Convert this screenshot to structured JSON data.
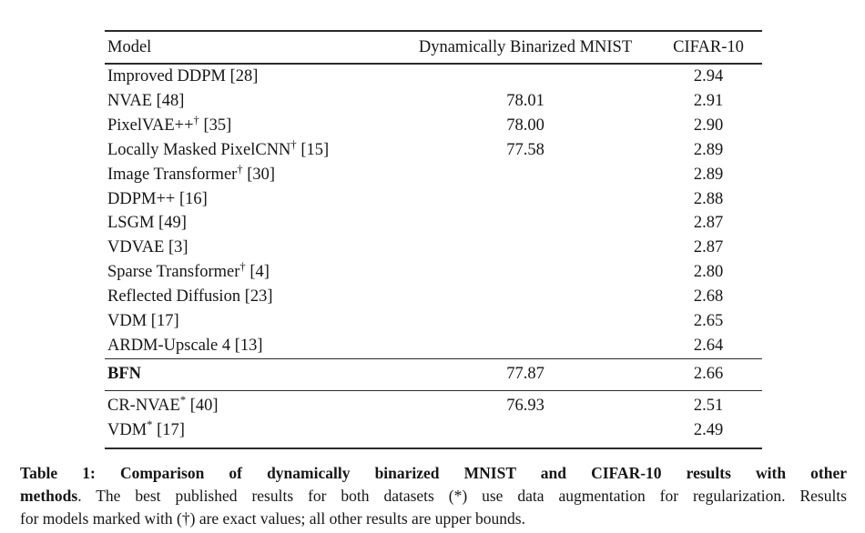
{
  "page": {
    "background": "#ffffff",
    "text_color": "#161616",
    "rule_color": "#2a2a2a"
  },
  "table": {
    "columns": [
      "Model",
      "Dynamically Binarized MNIST",
      "CIFAR-10"
    ],
    "sections": [
      {
        "name": "published",
        "rows": [
          {
            "model": "Improved DDPM",
            "sup": "",
            "ref": "[28]",
            "bold": false,
            "mnist": "",
            "cifar": "2.94"
          },
          {
            "model": "NVAE",
            "sup": "",
            "ref": "[48]",
            "bold": false,
            "mnist": "78.01",
            "cifar": "2.91"
          },
          {
            "model": "PixelVAE++",
            "sup": "†",
            "ref": "[35]",
            "bold": false,
            "mnist": "78.00",
            "cifar": "2.90"
          },
          {
            "model": "Locally Masked PixelCNN",
            "sup": "†",
            "ref": "[15]",
            "bold": false,
            "mnist": "77.58",
            "cifar": "2.89"
          },
          {
            "model": "Image Transformer",
            "sup": "†",
            "ref": "[30]",
            "bold": false,
            "mnist": "",
            "cifar": "2.89"
          },
          {
            "model": "DDPM++",
            "sup": "",
            "ref": "[16]",
            "bold": false,
            "mnist": "",
            "cifar": "2.88"
          },
          {
            "model": "LSGM",
            "sup": "",
            "ref": "[49]",
            "bold": false,
            "mnist": "",
            "cifar": "2.87"
          },
          {
            "model": "VDVAE",
            "sup": "",
            "ref": "[3]",
            "bold": false,
            "mnist": "",
            "cifar": "2.87"
          },
          {
            "model": "Sparse Transformer",
            "sup": "†",
            "ref": "[4]",
            "bold": false,
            "mnist": "",
            "cifar": "2.80"
          },
          {
            "model": "Reflected Diffusion",
            "sup": "",
            "ref": "[23]",
            "bold": false,
            "mnist": "",
            "cifar": "2.68"
          },
          {
            "model": "VDM",
            "sup": "",
            "ref": "[17]",
            "bold": false,
            "mnist": "",
            "cifar": "2.65"
          },
          {
            "model": "ARDM-Upscale 4",
            "sup": "",
            "ref": "[13]",
            "bold": false,
            "mnist": "",
            "cifar": "2.64"
          }
        ]
      },
      {
        "name": "ours",
        "rows": [
          {
            "model": "BFN",
            "sup": "",
            "ref": "",
            "bold": true,
            "mnist": "77.87",
            "cifar": "2.66"
          }
        ]
      },
      {
        "name": "best-published",
        "rows": [
          {
            "model": "CR-NVAE",
            "sup": "*",
            "ref": "[40]",
            "bold": false,
            "mnist": "76.93",
            "cifar": "2.51"
          },
          {
            "model": "VDM",
            "sup": "*",
            "ref": "[17]",
            "bold": false,
            "mnist": "",
            "cifar": "2.49"
          }
        ]
      }
    ]
  },
  "caption": {
    "line1_bold": "Table 1: Comparison of dynamically binarized MNIST and CIFAR-10 results with other",
    "line2_bold": "methods",
    "line2_rest": ". The best published results for both datasets (*) use data augmentation for regularization. Results",
    "line3": "for models marked with (†) are exact values; all other results are upper bounds."
  }
}
